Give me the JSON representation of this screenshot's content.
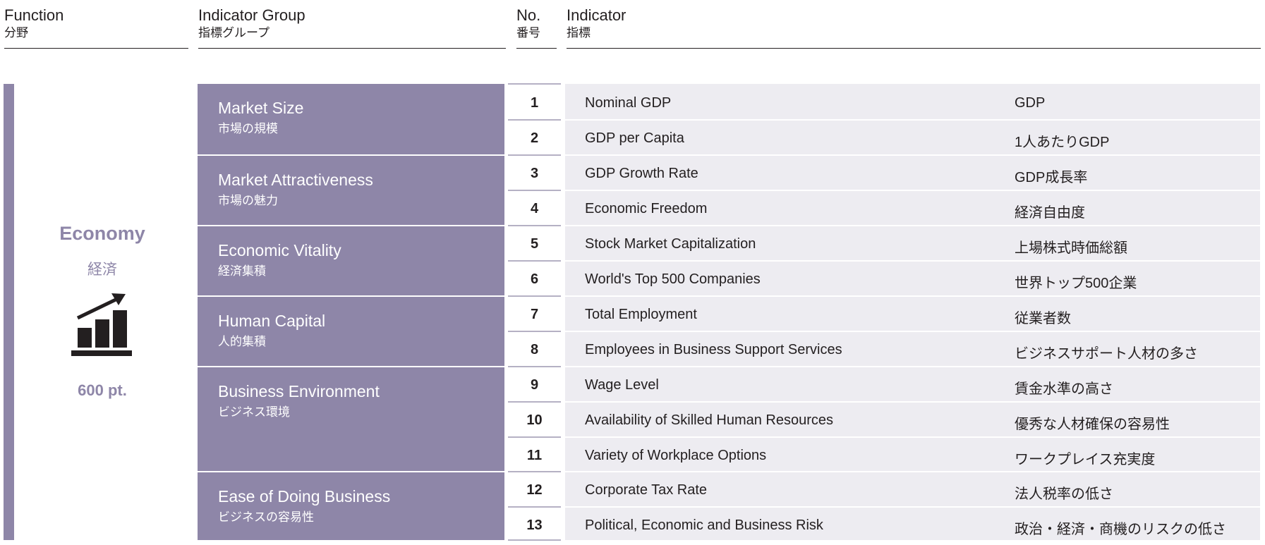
{
  "headers": {
    "function": {
      "en": "Function",
      "ja": "分野"
    },
    "group": {
      "en": "Indicator Group",
      "ja": "指標グループ"
    },
    "no": {
      "en": "No.",
      "ja": "番号"
    },
    "indicator": {
      "en": "Indicator",
      "ja": "指標"
    }
  },
  "function": {
    "name_en": "Economy",
    "name_ja": "経済",
    "points": "600 pt.",
    "icon": "bar-chart-growth-icon",
    "color": "#8e86a8"
  },
  "groups": [
    {
      "en": "Market Size",
      "ja": "市場の規模"
    },
    {
      "en": "Market Attractiveness",
      "ja": "市場の魅力"
    },
    {
      "en": "Economic Vitality",
      "ja": "経済集積"
    },
    {
      "en": "Human Capital",
      "ja": "人的集積"
    },
    {
      "en": "Business Environment",
      "ja": "ビジネス環境"
    },
    {
      "en": "Ease of Doing Business",
      "ja": "ビジネスの容易性"
    }
  ],
  "indicators": [
    {
      "no": "1",
      "en": "Nominal GDP",
      "ja": "GDP"
    },
    {
      "no": "2",
      "en": "GDP per Capita",
      "ja": "1人あたりGDP"
    },
    {
      "no": "3",
      "en": "GDP Growth Rate",
      "ja": "GDP成長率"
    },
    {
      "no": "4",
      "en": "Economic Freedom",
      "ja": "経済自由度"
    },
    {
      "no": "5",
      "en": "Stock Market Capitalization",
      "ja": "上場株式時価総額"
    },
    {
      "no": "6",
      "en": "World's Top 500 Companies",
      "ja": "世界トップ500企業"
    },
    {
      "no": "7",
      "en": "Total Employment",
      "ja": "従業者数"
    },
    {
      "no": "8",
      "en": "Employees in Business Support Services",
      "ja": "ビジネスサポート人材の多さ"
    },
    {
      "no": "9",
      "en": "Wage Level",
      "ja": "賃金水準の高さ"
    },
    {
      "no": "10",
      "en": "Availability of Skilled Human Resources",
      "ja": "優秀な人材確保の容易性"
    },
    {
      "no": "11",
      "en": "Variety of Workplace Options",
      "ja": "ワークプレイス充実度"
    },
    {
      "no": "12",
      "en": "Corporate Tax Rate",
      "ja": "法人税率の低さ"
    },
    {
      "no": "13",
      "en": "Political, Economic and Business Risk",
      "ja": "政治・経済・商機のリスクの低さ"
    }
  ]
}
